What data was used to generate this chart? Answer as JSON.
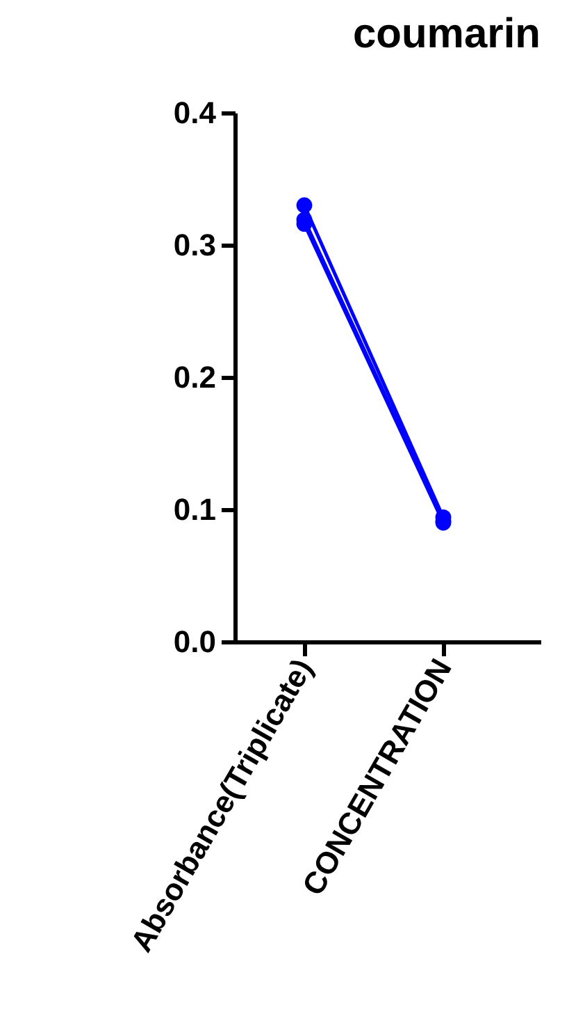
{
  "chart_data": {
    "type": "line",
    "title": "coumarin",
    "categories": [
      "Absorbance(Triplicate)",
      "CONCENTRATION"
    ],
    "series": [
      {
        "color": "#0000ff",
        "values": [
          0.33,
          0.094
        ]
      },
      {
        "color": "#0000ff",
        "values": [
          0.319,
          0.091
        ]
      },
      {
        "color": "#0000ff",
        "values": [
          0.316,
          0.09
        ]
      }
    ],
    "ylim": [
      0,
      0.4
    ],
    "yticks": [
      {
        "value": 0,
        "label": "0.0"
      },
      0.1,
      0.2,
      0.3,
      0.4
    ],
    "grid": false,
    "legend": false,
    "marker": "circle",
    "line_style": "solid"
  }
}
